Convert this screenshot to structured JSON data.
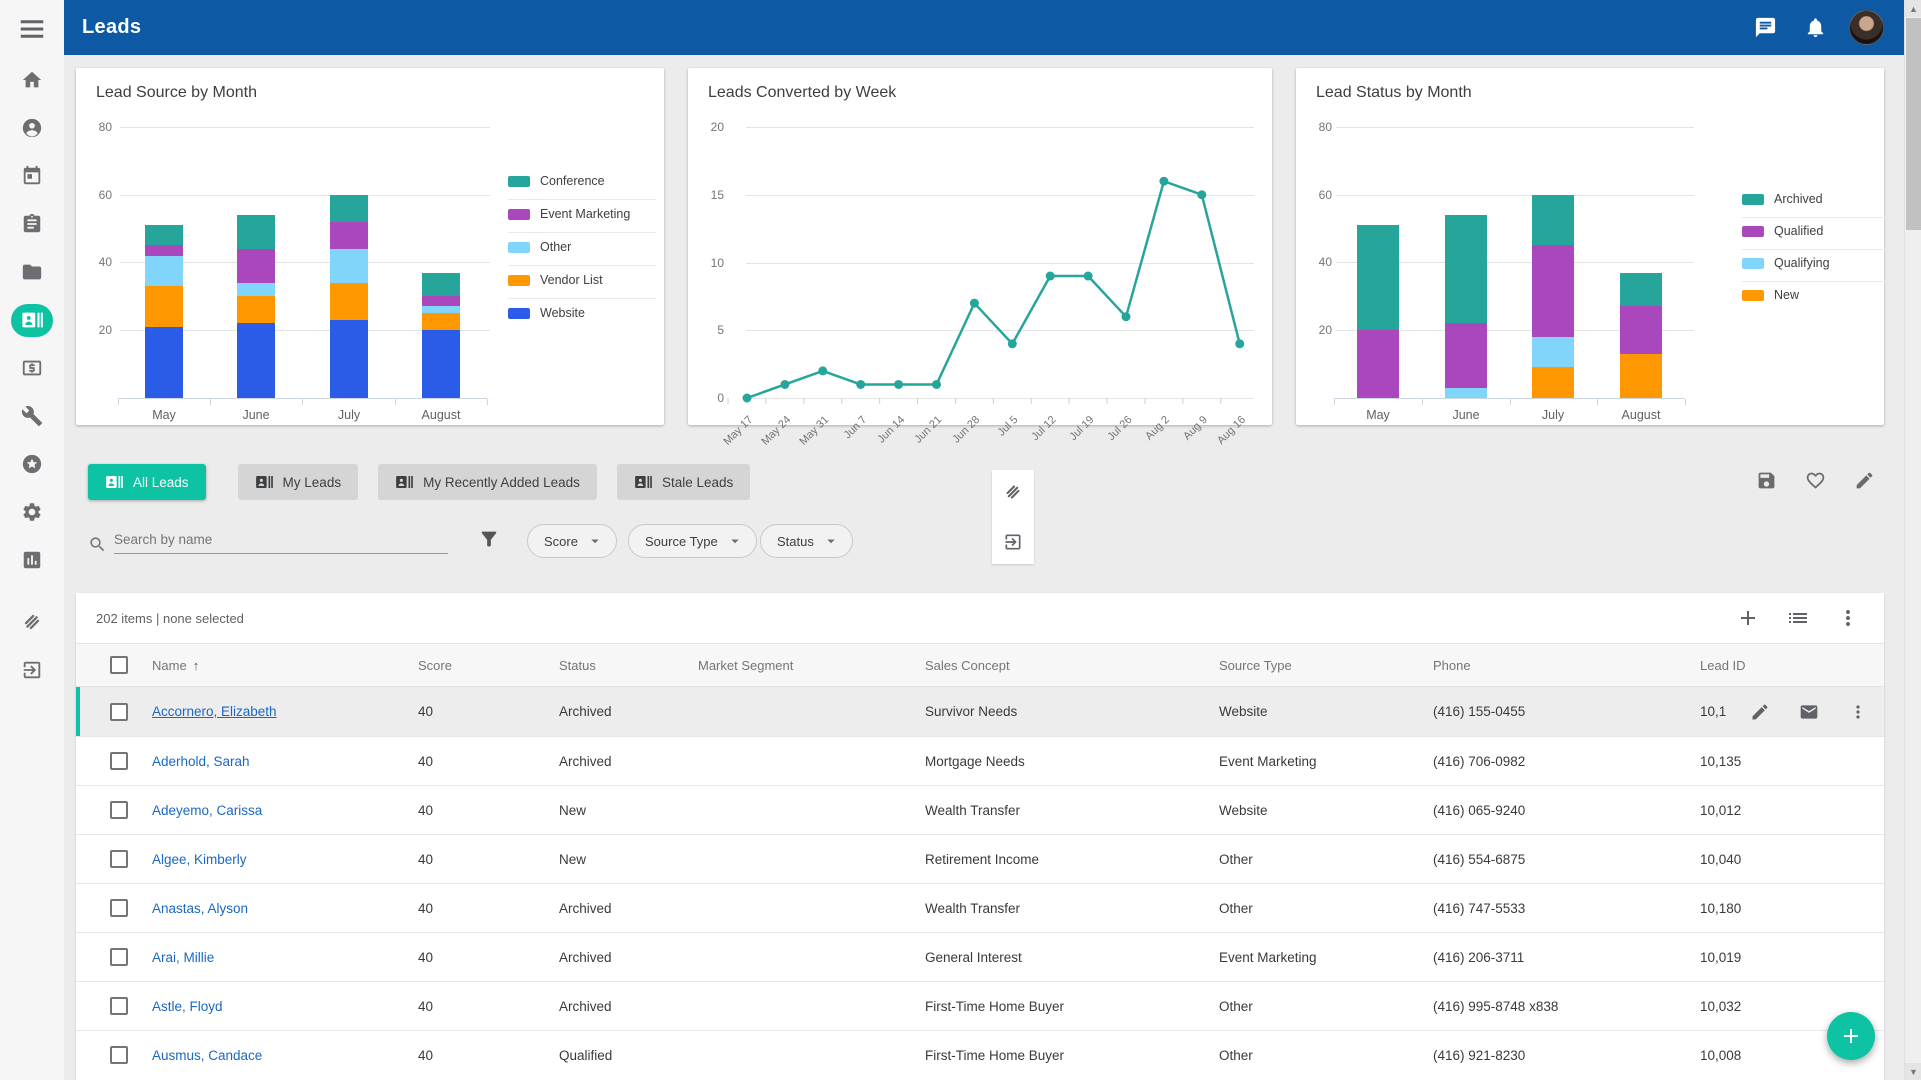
{
  "header": {
    "title": "Leads"
  },
  "sidebar": {
    "items": [
      {
        "icon": "home"
      },
      {
        "icon": "person"
      },
      {
        "icon": "calendar"
      },
      {
        "icon": "tasks"
      },
      {
        "icon": "folder"
      },
      {
        "icon": "contacts",
        "active": true
      },
      {
        "icon": "money"
      },
      {
        "icon": "tools"
      },
      {
        "icon": "stars"
      },
      {
        "icon": "settings"
      },
      {
        "icon": "reports"
      },
      {
        "icon": "handshake"
      },
      {
        "icon": "exit"
      }
    ]
  },
  "colors": {
    "accent": "#0dc3a3",
    "header_bar": "#0e59a4",
    "link": "#1a68c2",
    "series": {
      "Website": "#2a5ce8",
      "Vendor List": "#ff9800",
      "Other": "#81d4fa",
      "Event Marketing": "#ab47bc",
      "Conference": "#26a69a",
      "Archived": "#26a69a",
      "Qualified": "#ab47bc",
      "Qualifying": "#81d4fa",
      "New": "#ff9800"
    }
  },
  "chart_data": [
    {
      "type": "bar",
      "stacked": true,
      "title": "Lead Source by Month",
      "categories": [
        "May",
        "June",
        "July",
        "August"
      ],
      "series": [
        {
          "name": "Website",
          "values": [
            21,
            22,
            23,
            20
          ]
        },
        {
          "name": "Vendor List",
          "values": [
            12,
            8,
            11,
            5
          ]
        },
        {
          "name": "Other",
          "values": [
            9,
            4,
            10,
            2
          ]
        },
        {
          "name": "Event Marketing",
          "values": [
            3,
            10,
            8,
            3
          ]
        },
        {
          "name": "Conference",
          "values": [
            6,
            10,
            8,
            7
          ]
        }
      ],
      "ylim": [
        0,
        80
      ],
      "yticks": [
        20,
        40,
        60,
        80
      ],
      "grid": true,
      "legend": [
        "Conference",
        "Event Marketing",
        "Other",
        "Vendor List",
        "Website"
      ],
      "legend_position": "right"
    },
    {
      "type": "line",
      "title": "Leads Converted by Week",
      "x": [
        "May 17",
        "May 24",
        "May 31",
        "Jun 7",
        "Jun 14",
        "Jun 21",
        "Jun 28",
        "Jul 5",
        "Jul 12",
        "Jul 19",
        "Jul 26",
        "Aug 2",
        "Aug 9",
        "Aug 16"
      ],
      "values": [
        0,
        1,
        2,
        1,
        1,
        1,
        7,
        4,
        9,
        9,
        6,
        16,
        15,
        4
      ],
      "ylim": [
        0,
        20
      ],
      "yticks": [
        0,
        5,
        10,
        15,
        20
      ],
      "grid": true,
      "legend_position": "none"
    },
    {
      "type": "bar",
      "stacked": true,
      "title": "Lead Status by Month",
      "categories": [
        "May",
        "June",
        "July",
        "August"
      ],
      "series": [
        {
          "name": "New",
          "values": [
            0,
            0,
            9,
            13
          ]
        },
        {
          "name": "Qualifying",
          "values": [
            0,
            3,
            9,
            0
          ]
        },
        {
          "name": "Qualified",
          "values": [
            20,
            19,
            27,
            14
          ]
        },
        {
          "name": "Archived",
          "values": [
            31,
            32,
            15,
            10
          ]
        }
      ],
      "ylim": [
        0,
        80
      ],
      "yticks": [
        20,
        40,
        60,
        80
      ],
      "grid": true,
      "legend": [
        "Archived",
        "Qualified",
        "Qualifying",
        "New"
      ],
      "legend_position": "right"
    }
  ],
  "tabs": [
    {
      "label": "All Leads",
      "active": true
    },
    {
      "label": "My Leads",
      "active": false
    },
    {
      "label": "My Recently Added Leads",
      "active": false
    },
    {
      "label": "Stale Leads",
      "active": false
    }
  ],
  "search": {
    "placeholder": "Search by name"
  },
  "filters": [
    {
      "label": "Score"
    },
    {
      "label": "Source Type"
    },
    {
      "label": "Status"
    }
  ],
  "table": {
    "summary": "202 items | none selected",
    "columns": [
      "Name",
      "Score",
      "Status",
      "Market Segment",
      "Sales Concept",
      "Source Type",
      "Phone",
      "Lead ID"
    ],
    "sort_column": "Name",
    "sort_arrow": "↑",
    "rows": [
      {
        "name": "Accornero, Elizabeth",
        "score": "40",
        "status": "Archived",
        "segment": "",
        "concept": "Survivor Needs",
        "source": "Website",
        "phone": "(416) 155-0455",
        "lead_id": "10,1",
        "highlighted": true
      },
      {
        "name": "Aderhold, Sarah",
        "score": "40",
        "status": "Archived",
        "segment": "",
        "concept": "Mortgage Needs",
        "source": "Event Marketing",
        "phone": "(416) 706-0982",
        "lead_id": "10,135"
      },
      {
        "name": "Adeyemo, Carissa",
        "score": "40",
        "status": "New",
        "segment": "",
        "concept": "Wealth Transfer",
        "source": "Website",
        "phone": "(416) 065-9240",
        "lead_id": "10,012"
      },
      {
        "name": "Algee, Kimberly",
        "score": "40",
        "status": "New",
        "segment": "",
        "concept": "Retirement Income",
        "source": "Other",
        "phone": "(416) 554-6875",
        "lead_id": "10,040"
      },
      {
        "name": "Anastas, Alyson",
        "score": "40",
        "status": "Archived",
        "segment": "",
        "concept": "Wealth Transfer",
        "source": "Other",
        "phone": "(416) 747-5533",
        "lead_id": "10,180"
      },
      {
        "name": "Arai, Millie",
        "score": "40",
        "status": "Archived",
        "segment": "",
        "concept": "General Interest",
        "source": "Event Marketing",
        "phone": "(416) 206-3711",
        "lead_id": "10,019"
      },
      {
        "name": "Astle, Floyd",
        "score": "40",
        "status": "Archived",
        "segment": "",
        "concept": "First-Time Home Buyer",
        "source": "Other",
        "phone": "(416) 995-8748 x838",
        "lead_id": "10,032"
      },
      {
        "name": "Ausmus, Candace",
        "score": "40",
        "status": "Qualified",
        "segment": "",
        "concept": "First-Time Home Buyer",
        "source": "Other",
        "phone": "(416) 921-8230",
        "lead_id": "10,008"
      }
    ]
  }
}
